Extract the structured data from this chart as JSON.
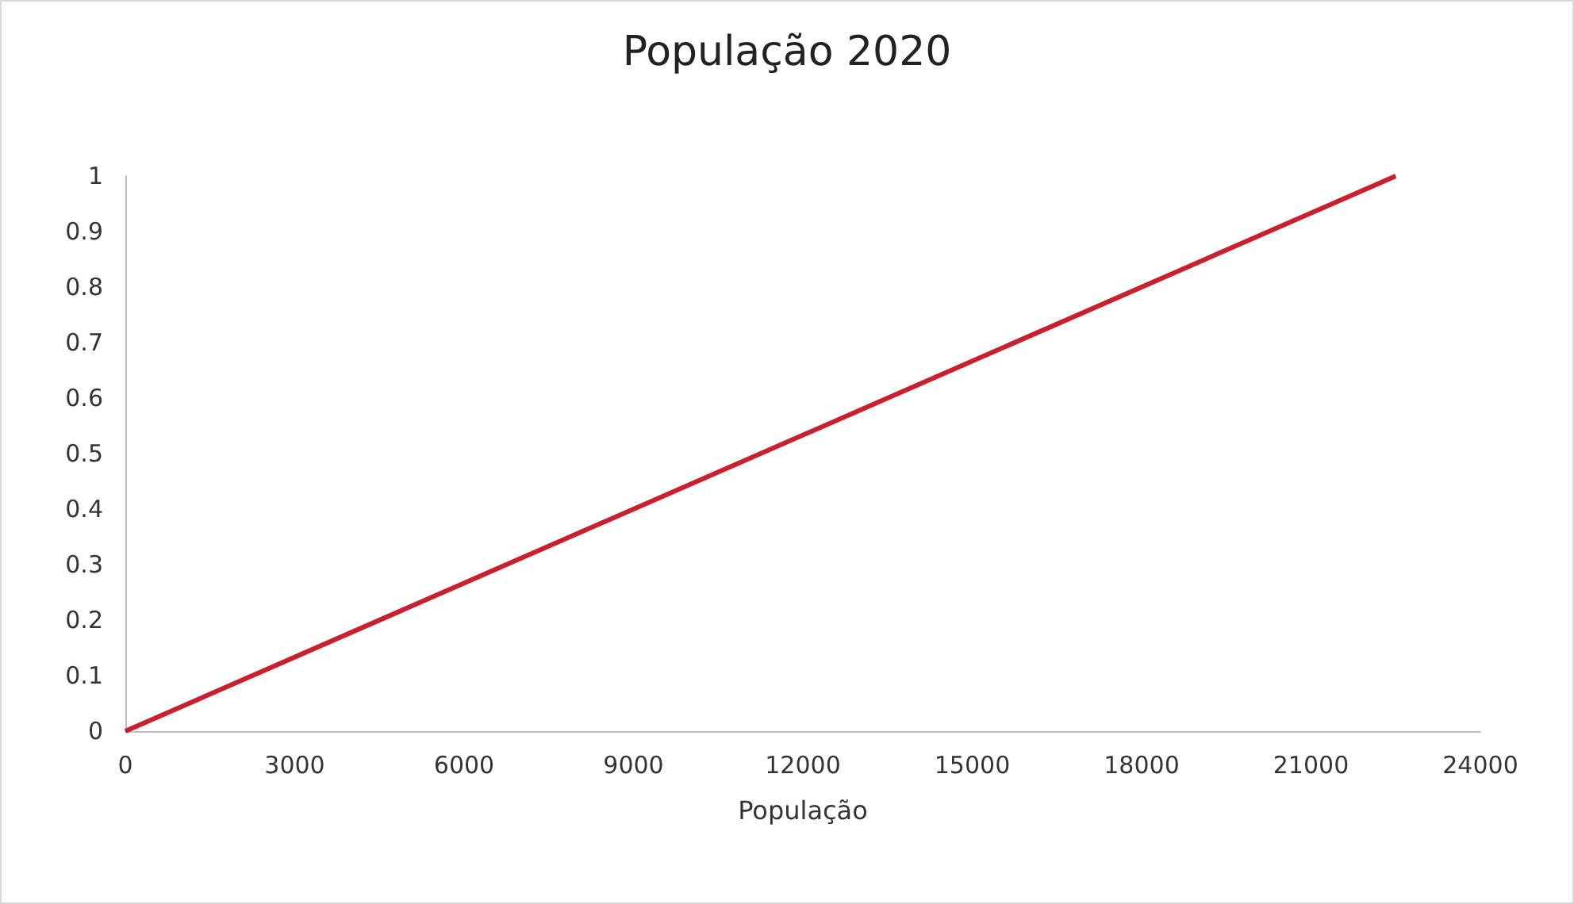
{
  "chart_data": {
    "type": "line",
    "title": "População 2020",
    "xlabel": "População",
    "x": [
      0,
      22500
    ],
    "series": [
      {
        "color": "#c8202c",
        "values": [
          0,
          1
        ]
      }
    ],
    "xlim": [
      0,
      24000
    ],
    "xticks": [
      0,
      3000,
      6000,
      9000,
      12000,
      15000,
      18000,
      21000,
      24000
    ],
    "ylim": [
      0,
      1
    ],
    "yticks": [
      0,
      0.1,
      0.2,
      0.3,
      0.4,
      0.5,
      0.6,
      0.7,
      0.8,
      0.9,
      1
    ],
    "grid": false,
    "marker": "none",
    "line_style": "solid"
  }
}
